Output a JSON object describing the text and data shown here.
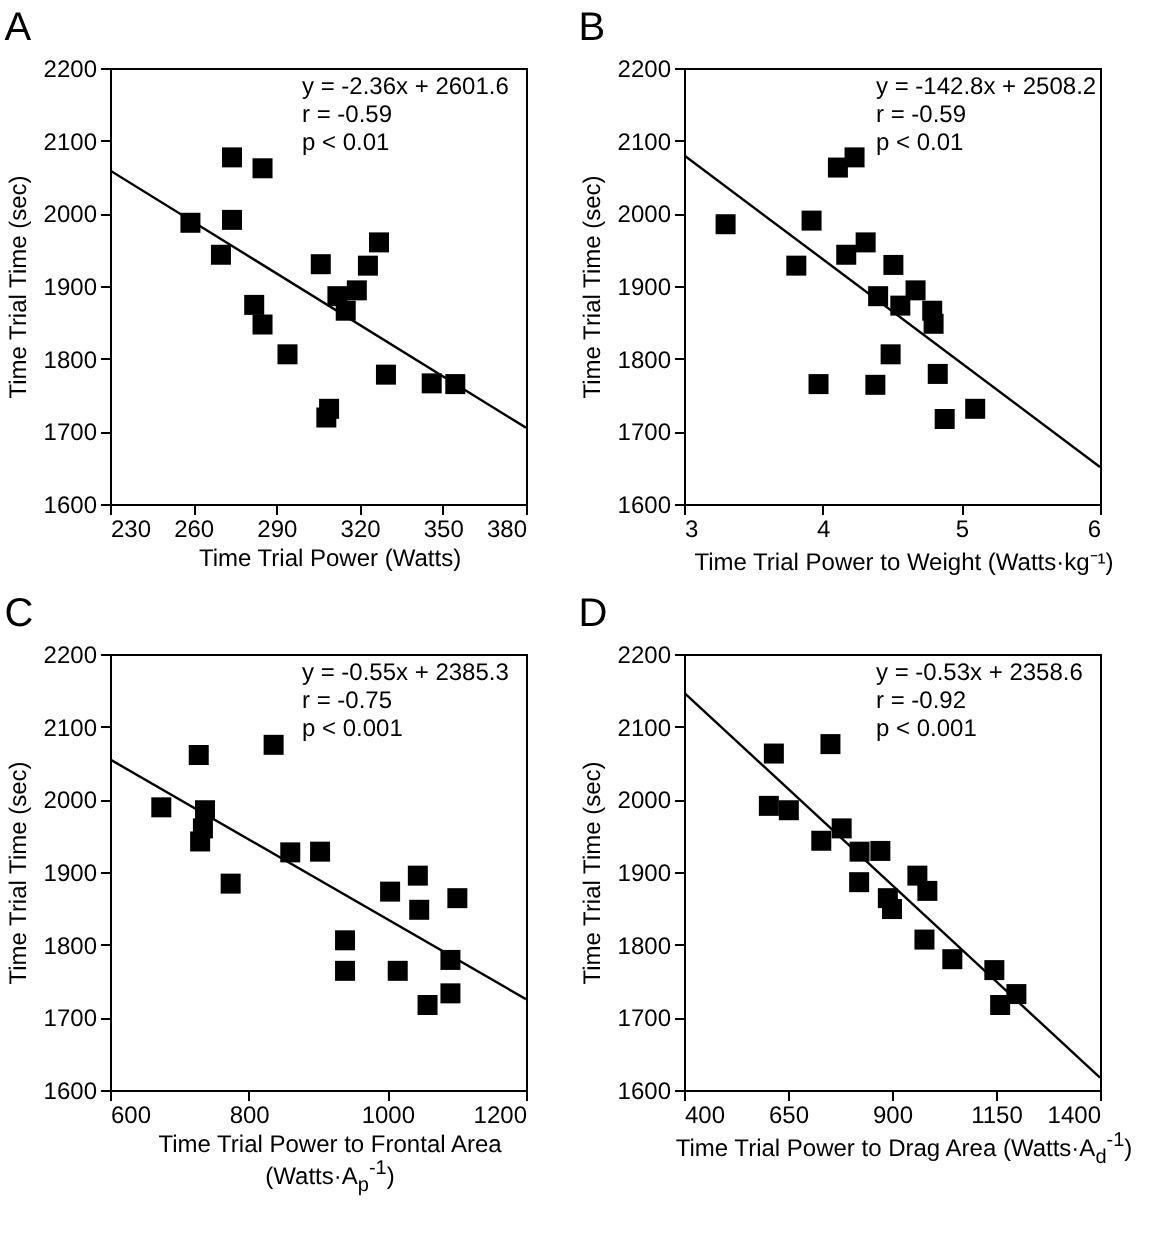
{
  "chart_data": [
    {
      "type": "scatter",
      "title": "A",
      "xlabel": "Time Trial Power (Watts)",
      "ylabel": "Time Trial Time (sec)",
      "annotations": [
        "y = -2.36x + 2601.6",
        "r = -0.59",
        "p < 0.01"
      ],
      "marker": "square",
      "xlim": [
        230,
        380
      ],
      "xticks": [
        230,
        260,
        290,
        320,
        350,
        380
      ],
      "ylim": [
        1600,
        2200
      ],
      "yticks": [
        1600,
        1700,
        1800,
        1900,
        2000,
        2100,
        2200
      ],
      "series": [
        {
          "color": "#000000",
          "x": [
            259,
            270,
            274,
            274,
            285,
            282,
            285,
            294,
            306,
            308,
            309,
            312,
            315,
            319,
            323,
            327,
            329.5,
            346,
            354.5
          ],
          "values": [
            1987,
            1943,
            2077,
            1991,
            2062,
            1874,
            1847,
            1806,
            1930,
            1719,
            1731,
            1886,
            1866,
            1894,
            1928,
            1960,
            1778,
            1766,
            1765
          ]
        },
        {
          "type": "line",
          "color": "#000000",
          "x": [
            230,
            380
          ],
          "values": [
            2059,
            1705
          ],
          "marker": "none"
        }
      ]
    },
    {
      "type": "scatter",
      "title": "B",
      "xlabel": "Time Trial Power to Weight (Watts·kg⁻¹)",
      "ylabel": "Time Trial Time (sec)",
      "annotations": [
        "y = -142.8x + 2508.2",
        "r = -0.59",
        "p < 0.01"
      ],
      "marker": "square",
      "xlim": [
        3,
        6
      ],
      "xticks": [
        3,
        4,
        5,
        6
      ],
      "ylim": [
        1600,
        2200
      ],
      "yticks": [
        1600,
        1700,
        1800,
        1900,
        2000,
        2100,
        2200
      ],
      "series": [
        {
          "color": "#000000",
          "x": [
            3.3,
            3.92,
            3.81,
            4.11,
            4.23,
            4.17,
            4.31,
            4.51,
            4.4,
            4.56,
            4.67,
            4.79,
            4.8,
            4.49,
            3.97,
            4.38,
            4.83,
            4.88,
            5.1
          ],
          "values": [
            1985,
            1990,
            1928,
            2063,
            2077,
            1943,
            1960,
            1929,
            1886,
            1873,
            1894,
            1866,
            1848,
            1806,
            1765,
            1764,
            1779,
            1717,
            1731
          ]
        },
        {
          "type": "line",
          "color": "#000000",
          "x": [
            3,
            6
          ],
          "values": [
            2080,
            1651
          ],
          "marker": "none"
        }
      ]
    },
    {
      "type": "scatter",
      "title": "C",
      "xlabel": "Time Trial Power to Frontal Area (Watts·A$_{p}$$^{-1}$)",
      "ylabel": "Time Trial Time (sec)",
      "annotations": [
        "y = -0.55x + 2385.3",
        "r = -0.75",
        "p < 0.001"
      ],
      "marker": "square",
      "xlim": [
        600,
        1200
      ],
      "xticks": [
        600,
        800,
        1000,
        1200
      ],
      "ylim": [
        1600,
        2200
      ],
      "yticks": [
        1600,
        1700,
        1800,
        1900,
        2000,
        2100,
        2200
      ],
      "series": [
        {
          "color": "#000000",
          "x": [
            674,
            728,
            737,
            734,
            730,
            774,
            836,
            860,
            903,
            939,
            939,
            1004,
            1044,
            1046,
            1015,
            1058,
            1101,
            1091,
            1091
          ],
          "values": [
            1989,
            2061,
            1985,
            1960,
            1942,
            1884,
            2075,
            1927,
            1928,
            1806,
            1764,
            1873,
            1895,
            1848,
            1764,
            1717,
            1864,
            1779,
            1733
          ]
        },
        {
          "type": "line",
          "color": "#000000",
          "x": [
            600,
            1200
          ],
          "values": [
            2055,
            1725
          ],
          "marker": "none"
        }
      ]
    },
    {
      "type": "scatter",
      "title": "D",
      "xlabel": "Time Trial Power to Drag Area (Watts·A$_{d}$$^{-1}$)",
      "ylabel": "Time Trial Time (sec)",
      "annotations": [
        "y = -0.53x + 2358.6",
        "r = -0.92",
        "p < 0.001"
      ],
      "marker": "square",
      "xlim": [
        400,
        1400
      ],
      "xticks": [
        400,
        650,
        900,
        1150,
        1400
      ],
      "ylim": [
        1600,
        2200
      ],
      "yticks": [
        1600,
        1700,
        1800,
        1900,
        2000,
        2100,
        2200
      ],
      "series": [
        {
          "color": "#000000",
          "x": [
            616,
            752,
            604,
            652,
            730,
            779,
            822,
            872,
            821,
            890,
            900,
            961,
            985,
            978,
            1045,
            1146,
            1160,
            1199
          ],
          "values": [
            2063,
            2076,
            1991,
            1985,
            1943,
            1960,
            1928,
            1929,
            1886,
            1864,
            1849,
            1895,
            1874,
            1807,
            1780,
            1765,
            1717,
            1732
          ]
        },
        {
          "type": "line",
          "color": "#000000",
          "x": [
            400,
            1400
          ],
          "values": [
            2147,
            1617
          ],
          "marker": "none"
        }
      ]
    }
  ]
}
